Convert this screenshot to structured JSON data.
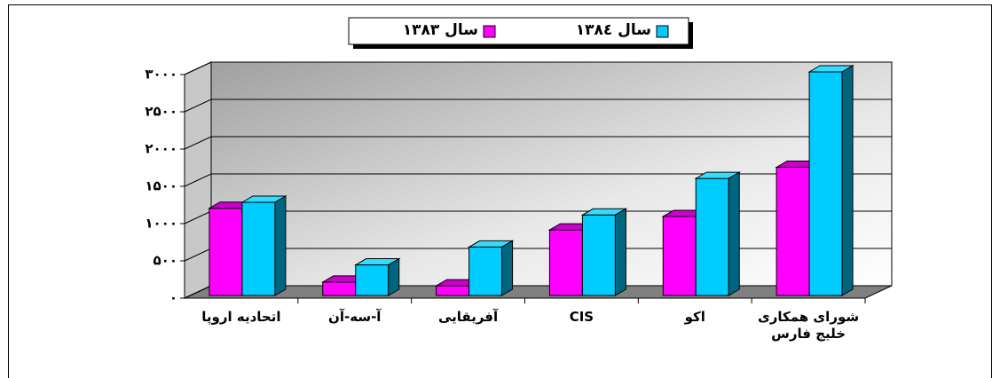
{
  "chart_data": {
    "type": "bar3d",
    "categories": [
      "اتحادیه اروپا",
      "آ-سه-آن",
      "آفریقایی",
      "CIS",
      "اکو",
      "شورای همکاری خلیج فارس"
    ],
    "series": [
      {
        "name": "سال ١٣٨٣",
        "color": "#ff00ff",
        "values": [
          1170,
          180,
          130,
          880,
          1060,
          1720
        ]
      },
      {
        "name": "سال ١٣٨٤",
        "color": "#00ccff",
        "values": [
          1250,
          410,
          650,
          1080,
          1570,
          3000
        ]
      }
    ],
    "ylim": [
      0,
      3000
    ],
    "yticks": [
      {
        "value": 0,
        "label": "۰"
      },
      {
        "value": 500,
        "label": "۵۰۰"
      },
      {
        "value": 1000,
        "label": "۱۰۰۰"
      },
      {
        "value": 1500,
        "label": "۱۵۰۰"
      },
      {
        "value": 2000,
        "label": "۲۰۰۰"
      },
      {
        "value": 2500,
        "label": "۲۵۰۰"
      },
      {
        "value": 3000,
        "label": "۳۰۰۰"
      }
    ],
    "grid": true
  }
}
